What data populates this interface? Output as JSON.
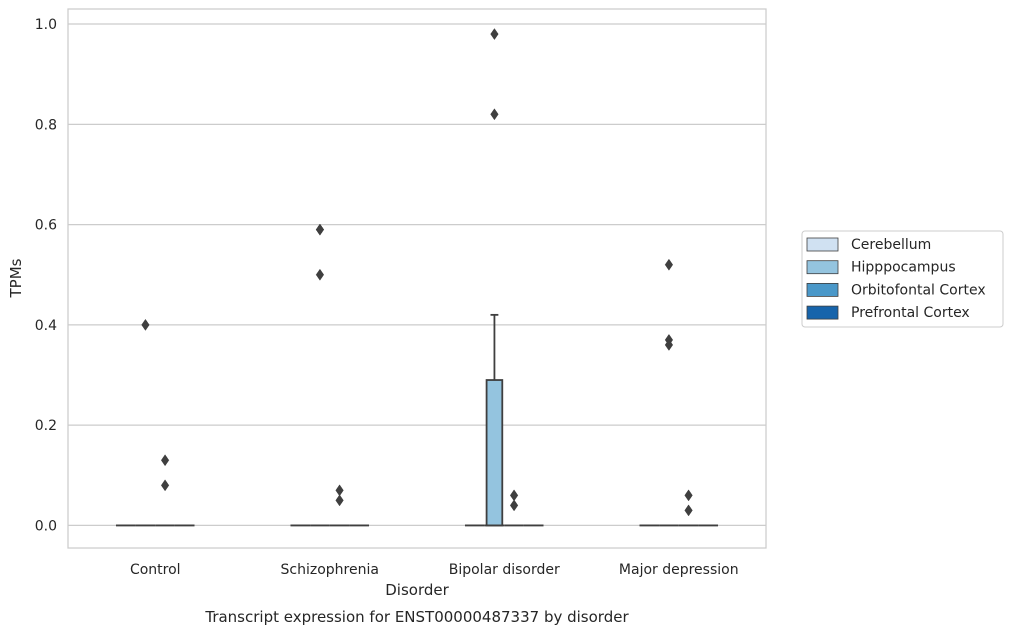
{
  "chart_data": {
    "type": "box",
    "title": "",
    "xlabel": "Disorder",
    "ylabel": "TPMs",
    "caption": "Transcript expression for ENST00000487337 by disorder",
    "ylim": [
      -0.045,
      1.03
    ],
    "yticks": [
      0.0,
      0.2,
      0.4,
      0.6,
      0.8,
      1.0
    ],
    "ytick_labels": [
      "0.0",
      "0.2",
      "0.4",
      "0.6",
      "0.8",
      "1.0"
    ],
    "grid": "horizontal",
    "legend_position": "right",
    "categories": [
      "Control",
      "Schizophrenia",
      "Bipolar disorder",
      "Major depression"
    ],
    "series": [
      {
        "name": "Cerebellum",
        "color": "#d0e1f2",
        "boxes": [
          {
            "q1": 0,
            "median": 0,
            "q3": 0,
            "whisker_low": 0,
            "whisker_high": 0,
            "outliers": []
          },
          {
            "q1": 0,
            "median": 0,
            "q3": 0,
            "whisker_low": 0,
            "whisker_high": 0,
            "outliers": []
          },
          {
            "q1": 0,
            "median": 0,
            "q3": 0,
            "whisker_low": 0,
            "whisker_high": 0,
            "outliers": []
          },
          {
            "q1": 0,
            "median": 0,
            "q3": 0,
            "whisker_low": 0,
            "whisker_high": 0,
            "outliers": []
          }
        ]
      },
      {
        "name": "Hipppocampus",
        "color": "#94c4df",
        "boxes": [
          {
            "q1": 0,
            "median": 0,
            "q3": 0,
            "whisker_low": 0,
            "whisker_high": 0,
            "outliers": [
              0.4
            ]
          },
          {
            "q1": 0,
            "median": 0,
            "q3": 0,
            "whisker_low": 0,
            "whisker_high": 0,
            "outliers": [
              0.59,
              0.59,
              0.5
            ]
          },
          {
            "q1": 0,
            "median": 0,
            "q3": 0.29,
            "whisker_low": 0,
            "whisker_high": 0.42,
            "outliers": [
              0.98,
              0.82
            ]
          },
          {
            "q1": 0,
            "median": 0,
            "q3": 0,
            "whisker_low": 0,
            "whisker_high": 0,
            "outliers": [
              0.52,
              0.37,
              0.36
            ]
          }
        ]
      },
      {
        "name": "Orbitofontal Cortex",
        "color": "#4a98c9",
        "boxes": [
          {
            "q1": 0,
            "median": 0,
            "q3": 0,
            "whisker_low": 0,
            "whisker_high": 0,
            "outliers": [
              0.13,
              0.08
            ]
          },
          {
            "q1": 0,
            "median": 0,
            "q3": 0,
            "whisker_low": 0,
            "whisker_high": 0,
            "outliers": [
              0.07,
              0.05
            ]
          },
          {
            "q1": 0,
            "median": 0,
            "q3": 0,
            "whisker_low": 0,
            "whisker_high": 0,
            "outliers": [
              0.06,
              0.04
            ]
          },
          {
            "q1": 0,
            "median": 0,
            "q3": 0,
            "whisker_low": 0,
            "whisker_high": 0,
            "outliers": [
              0.06,
              0.03
            ]
          }
        ]
      },
      {
        "name": "Prefrontal Cortex",
        "color": "#1764ab",
        "boxes": [
          {
            "q1": 0,
            "median": 0,
            "q3": 0,
            "whisker_low": 0,
            "whisker_high": 0,
            "outliers": []
          },
          {
            "q1": 0,
            "median": 0,
            "q3": 0,
            "whisker_low": 0,
            "whisker_high": 0,
            "outliers": []
          },
          {
            "q1": 0,
            "median": 0,
            "q3": 0,
            "whisker_low": 0,
            "whisker_high": 0,
            "outliers": []
          },
          {
            "q1": 0,
            "median": 0,
            "q3": 0,
            "whisker_low": 0,
            "whisker_high": 0,
            "outliers": []
          }
        ]
      }
    ]
  }
}
